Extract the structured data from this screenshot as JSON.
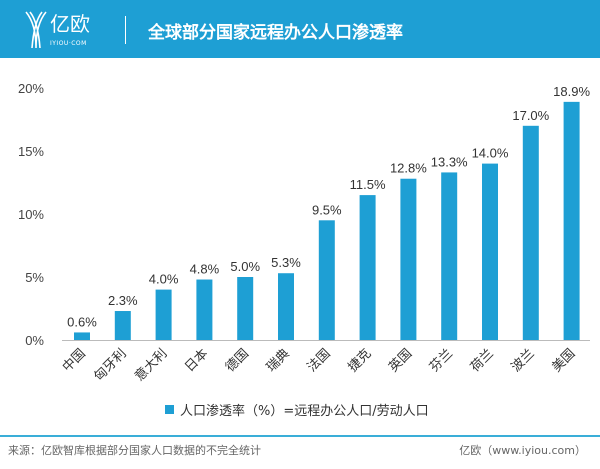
{
  "header": {
    "logo_text": "亿欧",
    "logo_sub": "IYIOU·COM",
    "title": "全球部分国家远程办公人口渗透率"
  },
  "chart_data": {
    "type": "bar",
    "categories": [
      "中国",
      "匈牙利",
      "意大利",
      "日本",
      "德国",
      "瑞典",
      "法国",
      "捷克",
      "英国",
      "芬兰",
      "荷兰",
      "波兰",
      "美国"
    ],
    "series": [
      {
        "name": "人口渗透率（%）=远程办公人口/劳动人口",
        "values": [
          0.6,
          2.3,
          4.0,
          4.8,
          5.0,
          5.3,
          9.5,
          11.5,
          12.8,
          13.3,
          14.0,
          17.0,
          18.9
        ]
      }
    ],
    "data_labels": [
      "0.6%",
      "2.3%",
      "4.0%",
      "4.8%",
      "5.0%",
      "5.3%",
      "9.5%",
      "11.5%",
      "12.8%",
      "13.3%",
      "14.0%",
      "17.0%",
      "18.9%"
    ],
    "yticks": [
      "0%",
      "5%",
      "10%",
      "15%",
      "20%"
    ],
    "ylim": [
      0,
      20
    ],
    "grid": false,
    "legend": "bottom",
    "color": "#1e9fd4"
  },
  "footer": {
    "source": "来源：亿欧智库根据部分国家人口数据的不完全统计",
    "credit": "亿欧（www.iyiou.com）"
  }
}
